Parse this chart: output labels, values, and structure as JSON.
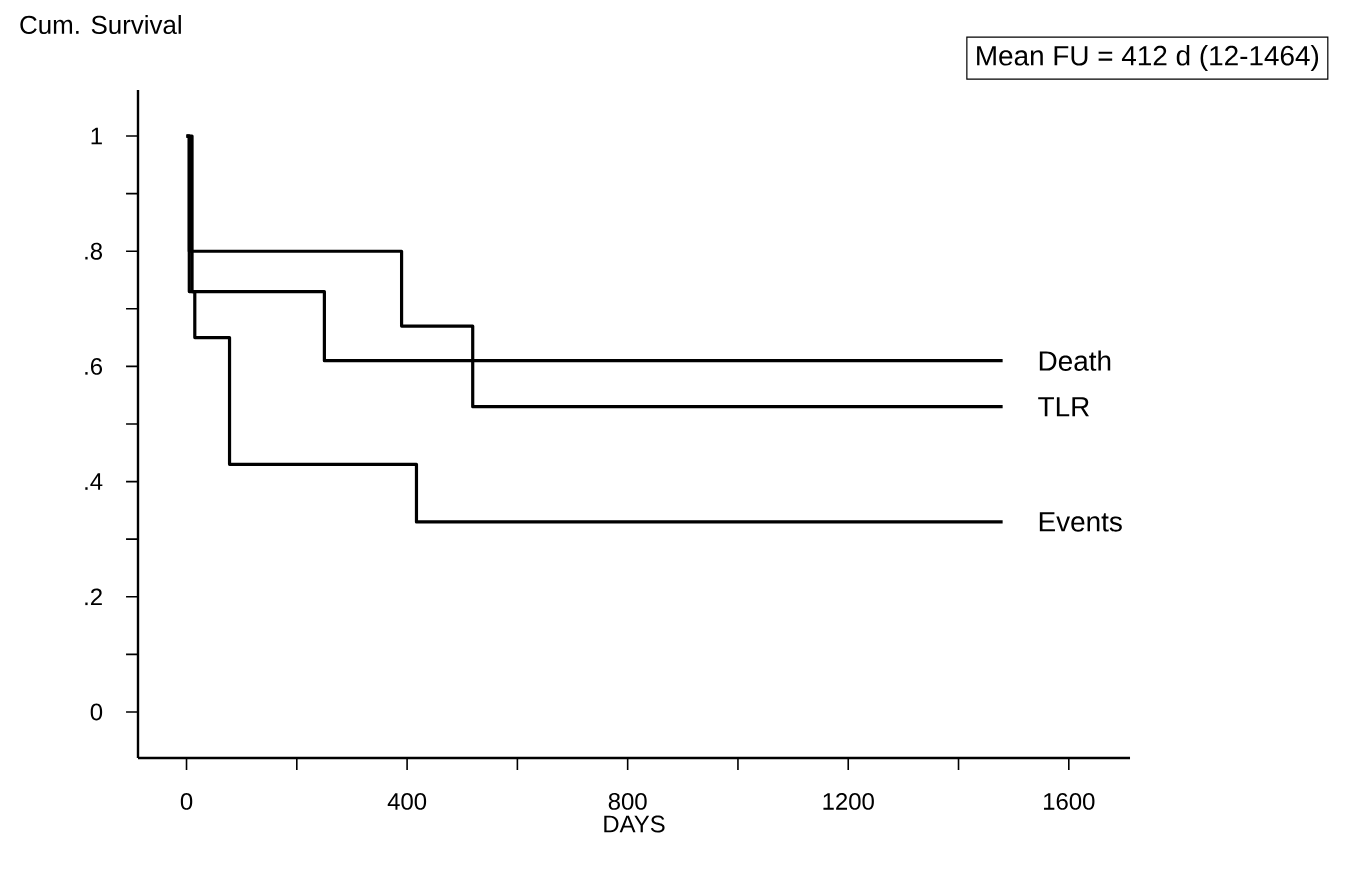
{
  "chart_data": {
    "type": "step",
    "title": "Cum. Survival",
    "xlabel": "DAYS",
    "annotations": [
      "Mean FU = 412 d (12-1464)"
    ],
    "xlim": [
      -88,
      1711
    ],
    "ylim": [
      -0.08,
      1.08
    ],
    "xticks": [
      0,
      {
        "value": 200,
        "label": null
      },
      400,
      {
        "value": 600,
        "label": null
      },
      800,
      {
        "value": 1000,
        "label": null
      },
      1200,
      {
        "value": 1400,
        "label": null
      },
      1600
    ],
    "yticks": [
      0,
      {
        "value": 0.1,
        "label": null
      },
      {
        "value": 0.2,
        "label": ".2"
      },
      {
        "value": 0.3,
        "label": null
      },
      {
        "value": 0.4,
        "label": ".4"
      },
      {
        "value": 0.5,
        "label": null
      },
      {
        "value": 0.6,
        "label": ".6"
      },
      {
        "value": 0.7,
        "label": null
      },
      {
        "value": 0.8,
        "label": ".8"
      },
      {
        "value": 0.9,
        "label": null
      },
      1
    ],
    "marker": "none",
    "line_style": "solid",
    "series": [
      {
        "name": "Death",
        "color": "#000000",
        "x": [
          0,
          10,
          250,
          1480
        ],
        "values": [
          1,
          0.73,
          0.61,
          0.61
        ]
      },
      {
        "name": "TLR",
        "color": "#000000",
        "x": [
          0,
          5,
          390,
          519,
          1480
        ],
        "values": [
          1,
          0.8,
          0.67,
          0.53,
          0.53
        ]
      },
      {
        "name": "Events",
        "color": "#000000",
        "x": [
          0,
          5,
          15,
          78,
          417,
          1480
        ],
        "values": [
          1,
          0.73,
          0.65,
          0.43,
          0.33,
          0.33
        ]
      }
    ]
  }
}
